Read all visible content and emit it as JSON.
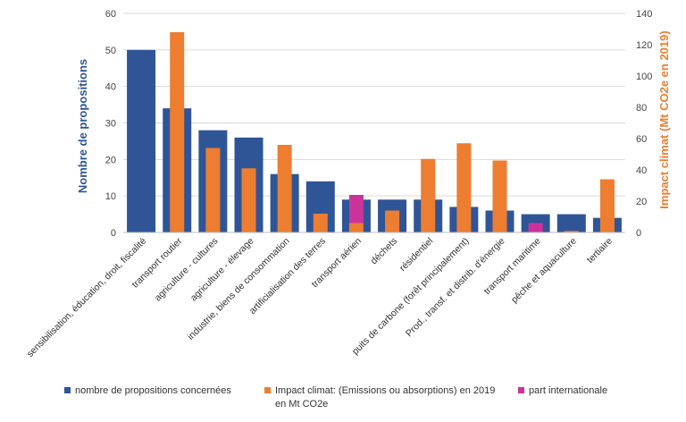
{
  "chart_data": {
    "type": "bar",
    "categories": [
      "sensibilisation, éducation, droit, fiscalité",
      "transport routier",
      "agriculture - cultures",
      "agriculture - élevage",
      "industrie, biens de consommation",
      "artificialisation des terres",
      "transport aérien",
      "déchets",
      "résidentiel",
      "puits de carbone (forêt principalement)",
      "Prod., transf. et distrib. d'énergie",
      "transport maritime",
      "pêche et aquaculture",
      "tertiaire"
    ],
    "series": [
      {
        "name": "nombre de propositions concernées",
        "axis": "left",
        "color": "#2f5597",
        "values": [
          50,
          34,
          28,
          26,
          16,
          14,
          9,
          9,
          9,
          7,
          6,
          5,
          5,
          4
        ]
      },
      {
        "name": "Impact climat: (Emissions ou absorptions) en 2019 en Mt CO2e",
        "axis": "right",
        "color": "#ed7d31",
        "values": [
          0,
          128,
          54,
          41,
          56,
          12,
          6,
          14,
          47,
          57,
          46,
          0,
          1,
          34
        ]
      },
      {
        "name": "part internationale",
        "axis": "right",
        "color": "#cc3399",
        "stacked_on": "Impact climat: (Emissions ou absorptions) en 2019 en Mt CO2e",
        "values": [
          0,
          0,
          0,
          0,
          0,
          0,
          18,
          0,
          0,
          0,
          0,
          6,
          0,
          0
        ]
      }
    ],
    "ylabel": "Nombre de propositions",
    "y2label": "Impact climat (Mt CO2e en 2019)",
    "ylim": [
      0,
      60
    ],
    "y2lim": [
      0,
      140
    ],
    "yticks": [
      0,
      10,
      20,
      30,
      40,
      50,
      60
    ],
    "y2ticks": [
      0,
      20,
      40,
      60,
      80,
      100,
      120,
      140
    ],
    "grid": true,
    "legend_position": "bottom",
    "legend": [
      {
        "label": "nombre de propositions concernées",
        "color": "#2f5597"
      },
      {
        "label": "Impact climat: (Emissions ou absorptions) en 2019",
        "label2": "en Mt CO2e",
        "color": "#ed7d31"
      },
      {
        "label": "part internationale",
        "color": "#cc3399"
      }
    ]
  }
}
